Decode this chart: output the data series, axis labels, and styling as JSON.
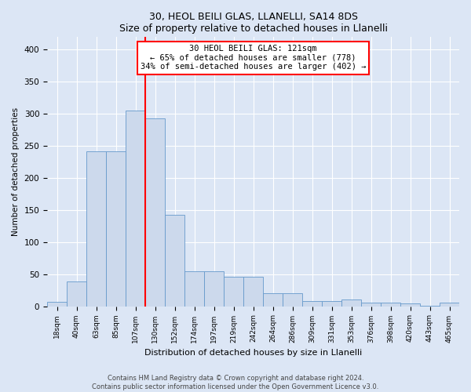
{
  "title1": "30, HEOL BEILI GLAS, LLANELLI, SA14 8DS",
  "title2": "Size of property relative to detached houses in Llanelli",
  "xlabel": "Distribution of detached houses by size in Llanelli",
  "ylabel": "Number of detached properties",
  "bin_labels": [
    "18sqm",
    "40sqm",
    "63sqm",
    "85sqm",
    "107sqm",
    "130sqm",
    "152sqm",
    "174sqm",
    "197sqm",
    "219sqm",
    "242sqm",
    "264sqm",
    "286sqm",
    "309sqm",
    "331sqm",
    "353sqm",
    "376sqm",
    "398sqm",
    "420sqm",
    "443sqm",
    "465sqm"
  ],
  "bar_values": [
    7,
    39,
    241,
    241,
    305,
    293,
    143,
    54,
    55,
    46,
    46,
    20,
    20,
    8,
    8,
    11,
    5,
    5,
    4,
    1,
    5
  ],
  "bar_color": "#ccd9ec",
  "bar_edge_color": "#6699cc",
  "vline_x_index": 5,
  "vline_color": "red",
  "annotation_text": "30 HEOL BEILI GLAS: 121sqm\n← 65% of detached houses are smaller (778)\n34% of semi-detached houses are larger (402) →",
  "annotation_box_color": "white",
  "annotation_box_edge_color": "red",
  "ylim": [
    0,
    420
  ],
  "yticks": [
    0,
    50,
    100,
    150,
    200,
    250,
    300,
    350,
    400
  ],
  "background_color": "#dce6f5",
  "grid_color": "white",
  "footnote": "Contains HM Land Registry data © Crown copyright and database right 2024.\nContains public sector information licensed under the Open Government Licence v3.0."
}
